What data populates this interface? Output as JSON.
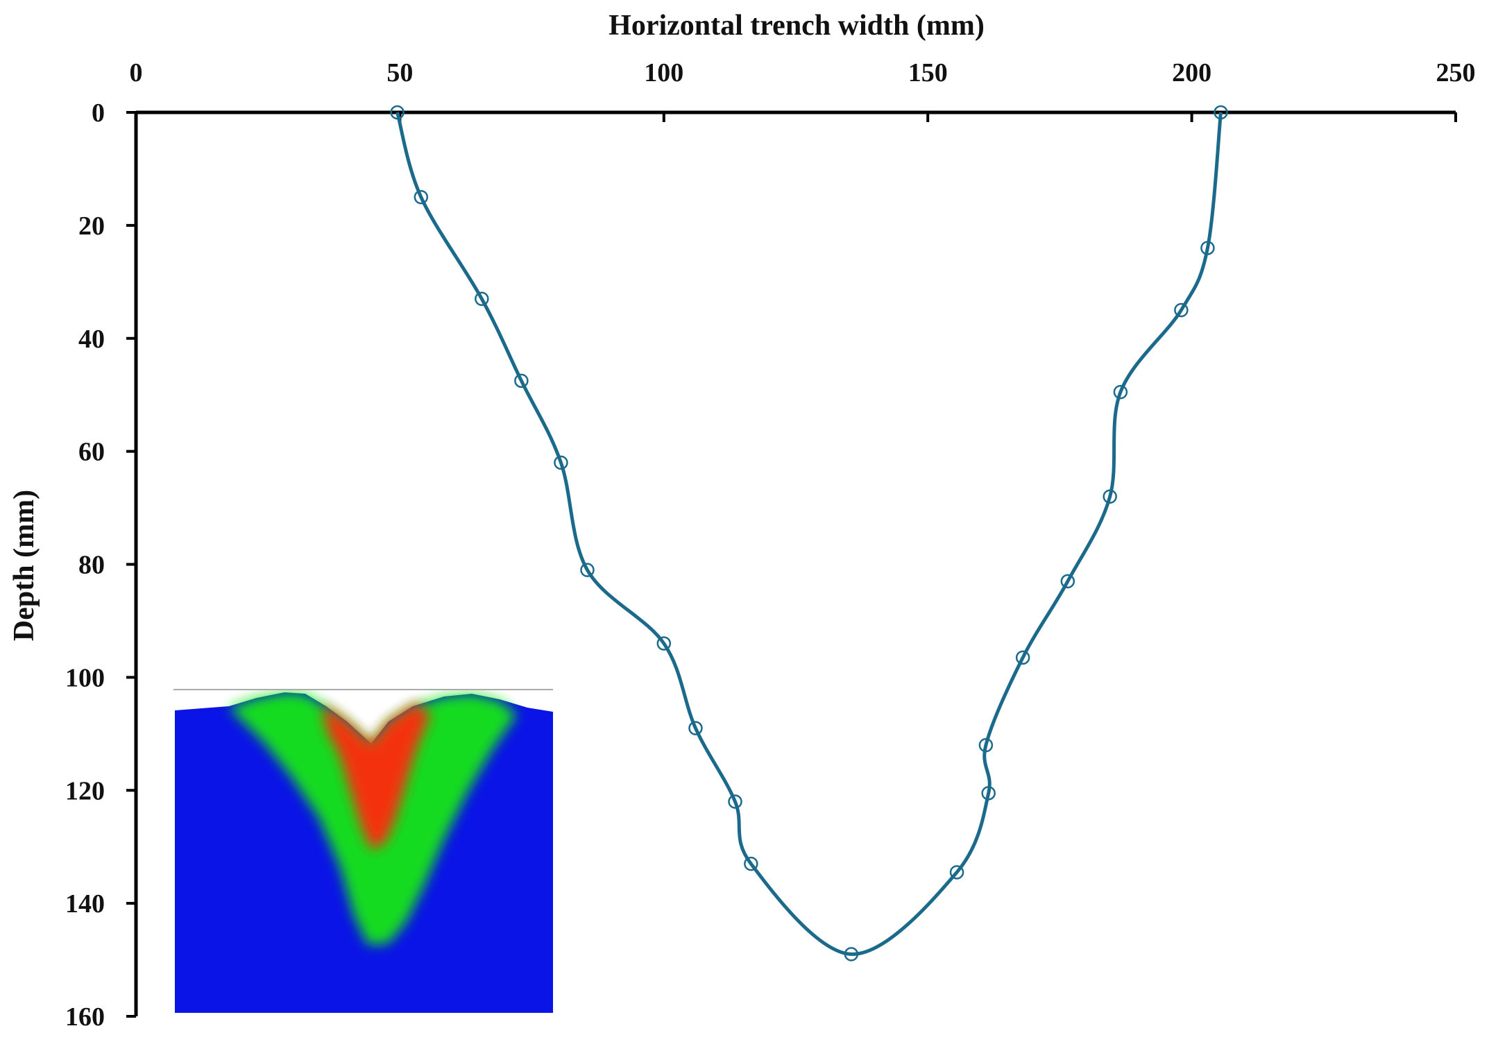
{
  "chart_data": {
    "type": "line",
    "xlabel": "Horizontal trench width (mm)",
    "ylabel": "Depth (mm)",
    "xlim": [
      0,
      250
    ],
    "ylim": [
      0,
      160
    ],
    "y_inverted": true,
    "x_axis_position": "top",
    "x_ticks": [
      "0",
      "50",
      "100",
      "150",
      "200",
      "250"
    ],
    "y_ticks": [
      "0",
      "20",
      "40",
      "60",
      "80",
      "100",
      "120",
      "140",
      "160"
    ],
    "grid": false,
    "legend": "none",
    "line_color": "#1b6a8c",
    "marker": "open-circle",
    "series": [
      {
        "x": [
          49.5,
          54.0,
          65.5,
          73.0,
          80.5,
          85.5,
          100.0,
          106.0,
          113.5,
          116.5,
          135.5,
          155.5,
          161.5,
          161.0,
          168.0,
          176.5,
          184.5,
          186.5,
          198.0,
          203.0,
          205.5
        ],
        "y": [
          0,
          15,
          33,
          47.5,
          62,
          81,
          94,
          109,
          122,
          133,
          149,
          134.5,
          120.5,
          112,
          96.5,
          83,
          68,
          49.5,
          35,
          24,
          0
        ]
      }
    ],
    "inset_image": {
      "description_colors": [
        "#0a14e6",
        "#18e618",
        "#ff2a10"
      ],
      "reference_line_color": "#aaaaaa"
    }
  }
}
